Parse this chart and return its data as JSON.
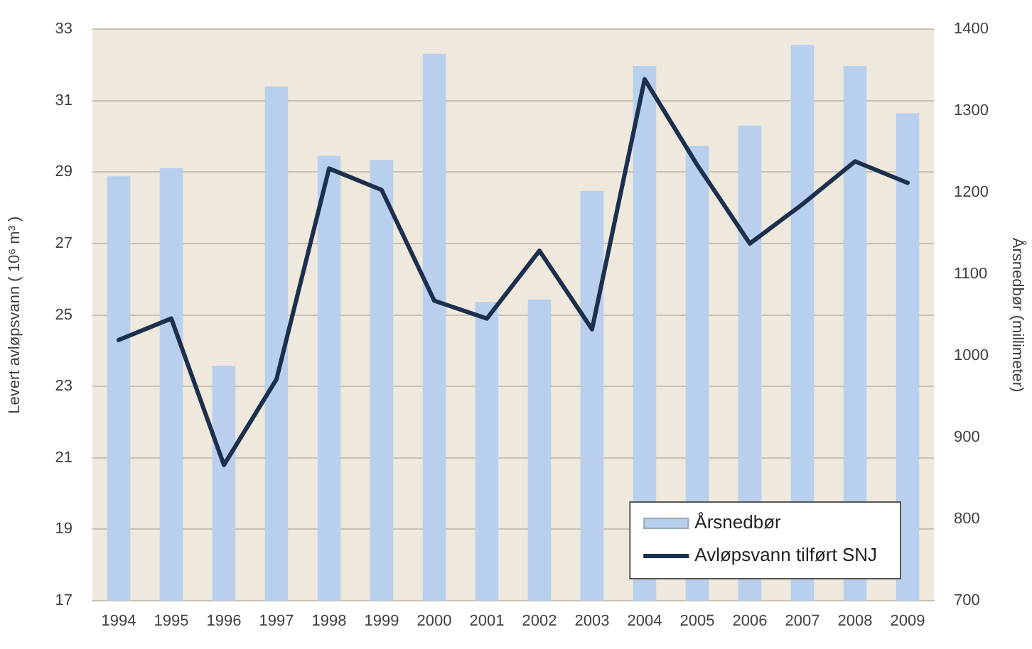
{
  "chart_data": {
    "type": "bar",
    "categories": [
      "1994",
      "1995",
      "1996",
      "1997",
      "1998",
      "1999",
      "2000",
      "2001",
      "2002",
      "2003",
      "2004",
      "2005",
      "2006",
      "2007",
      "2008",
      "2009"
    ],
    "series": [
      {
        "name": "Årsnedbør",
        "axis": "y2",
        "color": "#b8cfee",
        "values": [
          1220,
          1230,
          988,
          1330,
          1245,
          1240,
          1370,
          1066,
          1069,
          1202,
          1355,
          1257,
          1282,
          1381,
          1355,
          1297
        ]
      },
      {
        "name": "Avløpsvann tilført SNJ",
        "type": "line",
        "axis": "y",
        "color": "#1c2f4c",
        "values": [
          24.3,
          24.9,
          20.8,
          23.2,
          29.1,
          28.5,
          25.4,
          24.9,
          26.8,
          24.6,
          31.6,
          29.2,
          27.0,
          28.1,
          29.3,
          28.7
        ]
      }
    ],
    "ylabel": "Levert avløpsvann ( 10⁶ m³ )",
    "y2label": "Årsnedbør (millimeter)",
    "ylim": [
      17,
      33
    ],
    "yticks": [
      17,
      19,
      21,
      23,
      25,
      27,
      29,
      31,
      33
    ],
    "y2lim": [
      700,
      1400
    ],
    "y2ticks": [
      700,
      800,
      900,
      1000,
      1100,
      1200,
      1300,
      1400
    ],
    "grid": "y",
    "legend": "bottom right",
    "marker": "none"
  }
}
